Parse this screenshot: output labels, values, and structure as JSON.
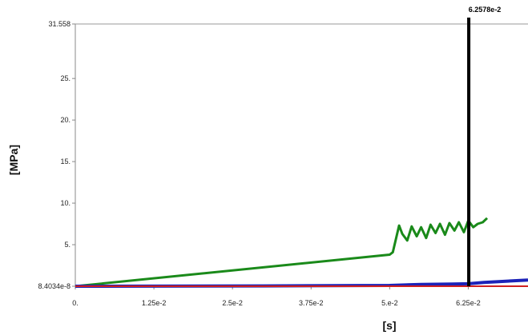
{
  "chart_data": {
    "type": "line",
    "xlabel": "[s]",
    "ylabel": "[MPa]",
    "xlim": [
      0,
      0.072
    ],
    "ylim": [
      8.4034e-08,
      31.558
    ],
    "x_ticks": [
      {
        "value": 0,
        "label": "0."
      },
      {
        "value": 0.0125,
        "label": "1.25e-2"
      },
      {
        "value": 0.025,
        "label": "2.5e-2"
      },
      {
        "value": 0.0375,
        "label": "3.75e-2"
      },
      {
        "value": 0.05,
        "label": "5.e-2"
      },
      {
        "value": 0.0625,
        "label": "6.25e-2"
      }
    ],
    "y_ticks": [
      {
        "value": 8.4034e-08,
        "label": "8.4034e-8"
      },
      {
        "value": 5,
        "label": "5."
      },
      {
        "value": 10,
        "label": "10."
      },
      {
        "value": 15,
        "label": "15."
      },
      {
        "value": 20,
        "label": "20."
      },
      {
        "value": 25,
        "label": "25."
      },
      {
        "value": 31.558,
        "label": "31.558"
      }
    ],
    "grid": false,
    "marker": {
      "x": 0.062578,
      "label": "6.2578e-2",
      "color": "#000000"
    },
    "series": [
      {
        "color": "#1a8a1a",
        "x": [
          0,
          0.05,
          0.0505,
          0.0515,
          0.052,
          0.0528,
          0.0535,
          0.0543,
          0.055,
          0.0558,
          0.0565,
          0.0573,
          0.058,
          0.0588,
          0.0595,
          0.0603,
          0.061,
          0.0618,
          0.0625,
          0.0633,
          0.064,
          0.0648,
          0.0655
        ],
        "y": [
          0,
          3.8,
          4.1,
          7.3,
          6.3,
          5.5,
          7.2,
          6.0,
          7.1,
          5.8,
          7.4,
          6.4,
          7.5,
          6.2,
          7.6,
          6.7,
          7.7,
          6.5,
          7.9,
          7.1,
          7.5,
          7.7,
          8.2
        ]
      },
      {
        "color": "#1c22b8",
        "x": [
          0,
          0.03,
          0.05,
          0.055,
          0.06,
          0.0625,
          0.065,
          0.072
        ],
        "y": [
          0,
          0.04,
          0.1,
          0.22,
          0.26,
          0.3,
          0.45,
          0.75
        ]
      },
      {
        "color": "#d02020",
        "x": [
          0,
          0.072
        ],
        "y": [
          0,
          0
        ]
      }
    ]
  }
}
